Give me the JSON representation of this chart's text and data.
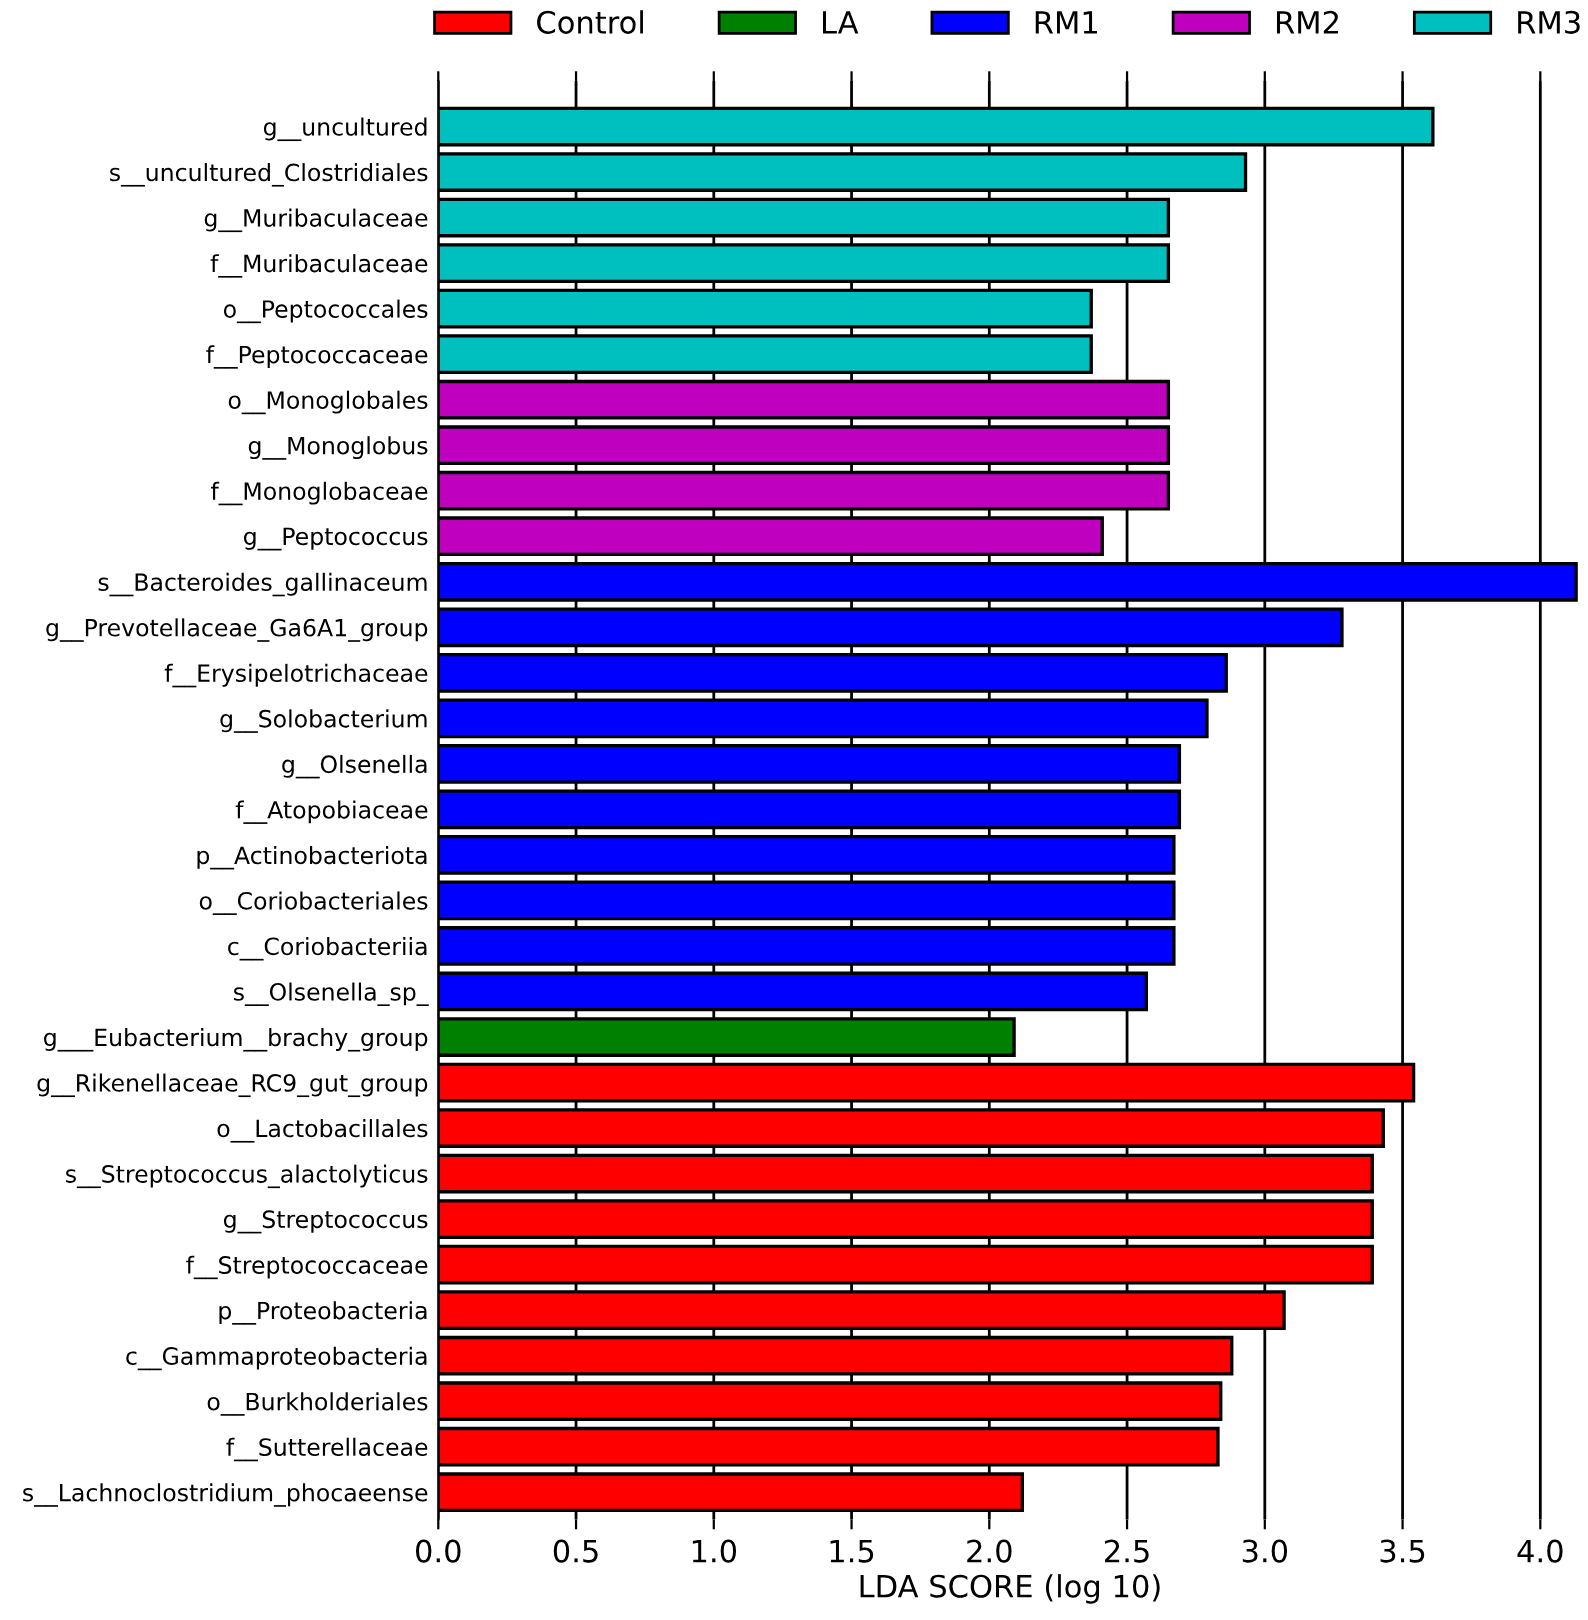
{
  "chart_data": {
    "type": "bar",
    "orientation": "horizontal",
    "xlabel": "LDA SCORE (log 10)",
    "categories": [
      "g__uncultured",
      "s__uncultured_Clostridiales",
      "g__Muribaculaceae",
      "f__Muribaculaceae",
      "o__Peptococcales",
      "f__Peptococcaceae",
      "o__Monoglobales",
      "g__Monoglobus",
      "f__Monoglobaceae",
      "g__Peptococcus",
      "s__Bacteroides_gallinaceum",
      "g__Prevotellaceae_Ga6A1_group",
      "f__Erysipelotrichaceae",
      "g__Solobacterium",
      "g__Olsenella",
      "f__Atopobiaceae",
      "p__Actinobacteriota",
      "o__Coriobacteriales",
      "c__Coriobacteriia",
      "s__Olsenella_sp_",
      "g___Eubacterium__brachy_group",
      "g__Rikenellaceae_RC9_gut_group",
      "o__Lactobacillales",
      "s__Streptococcus_alactolyticus",
      "g__Streptococcus",
      "f__Streptococcaceae",
      "p__Proteobacteria",
      "c__Gammaproteobacteria",
      "o__Burkholderiales",
      "f__Sutterellaceae",
      "s__Lachnoclostridium_phocaeense"
    ],
    "series": [
      {
        "name": "Control",
        "color": "#ff0000",
        "values": [
          null,
          null,
          null,
          null,
          null,
          null,
          null,
          null,
          null,
          null,
          null,
          null,
          null,
          null,
          null,
          null,
          null,
          null,
          null,
          null,
          null,
          3.54,
          3.43,
          3.39,
          3.39,
          3.39,
          3.07,
          2.88,
          2.84,
          2.83,
          2.12
        ]
      },
      {
        "name": "LA",
        "color": "#008000",
        "values": [
          null,
          null,
          null,
          null,
          null,
          null,
          null,
          null,
          null,
          null,
          null,
          null,
          null,
          null,
          null,
          null,
          null,
          null,
          null,
          null,
          2.09,
          null,
          null,
          null,
          null,
          null,
          null,
          null,
          null,
          null,
          null
        ]
      },
      {
        "name": "RM1",
        "color": "#0000ff",
        "values": [
          null,
          null,
          null,
          null,
          null,
          null,
          null,
          null,
          null,
          null,
          4.13,
          3.28,
          2.86,
          2.79,
          2.69,
          2.69,
          2.67,
          2.67,
          2.67,
          2.57,
          null,
          null,
          null,
          null,
          null,
          null,
          null,
          null,
          null,
          null,
          null
        ]
      },
      {
        "name": "RM2",
        "color": "#bf00bf",
        "values": [
          null,
          null,
          null,
          null,
          null,
          null,
          2.65,
          2.65,
          2.65,
          2.41,
          null,
          null,
          null,
          null,
          null,
          null,
          null,
          null,
          null,
          null,
          null,
          null,
          null,
          null,
          null,
          null,
          null,
          null,
          null,
          null,
          null
        ]
      },
      {
        "name": "RM3",
        "color": "#00bfbf",
        "values": [
          3.61,
          2.93,
          2.65,
          2.65,
          2.37,
          2.37,
          null,
          null,
          null,
          null,
          null,
          null,
          null,
          null,
          null,
          null,
          null,
          null,
          null,
          null,
          null,
          null,
          null,
          null,
          null,
          null,
          null,
          null,
          null,
          null,
          null
        ]
      }
    ],
    "xlim": [
      0,
      4.15
    ],
    "xticks": [
      {
        "value": 0,
        "label": "0.0"
      },
      {
        "value": 0.5,
        "label": "0.5"
      },
      {
        "value": 1,
        "label": "1.0"
      },
      {
        "value": 1.5,
        "label": "1.5"
      },
      {
        "value": 2,
        "label": "2.0"
      },
      {
        "value": 2.5,
        "label": "2.5"
      },
      {
        "value": 3,
        "label": "3.0"
      },
      {
        "value": 3.5,
        "label": "3.5"
      },
      {
        "value": 4,
        "label": "4.0"
      }
    ],
    "grid": "x",
    "legend": "top"
  }
}
